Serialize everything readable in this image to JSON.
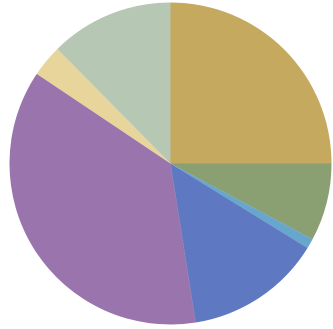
{
  "chart_data": {
    "type": "pie",
    "title": "",
    "start_angle_deg": 0,
    "direction": "clockwise",
    "slices": [
      {
        "label": "",
        "value": 25.0,
        "color": "#c4a95e"
      },
      {
        "label": "",
        "value": 7.8,
        "color": "#8a9f72"
      },
      {
        "label": "",
        "value": 1.0,
        "color": "#67a6cd"
      },
      {
        "label": "",
        "value": 13.7,
        "color": "#5e78c2"
      },
      {
        "label": "",
        "value": 36.9,
        "color": "#9a74ad"
      },
      {
        "label": "",
        "value": 3.2,
        "color": "#e7d59c"
      },
      {
        "label": "",
        "value": 12.4,
        "color": "#b6c7b3"
      }
    ]
  }
}
